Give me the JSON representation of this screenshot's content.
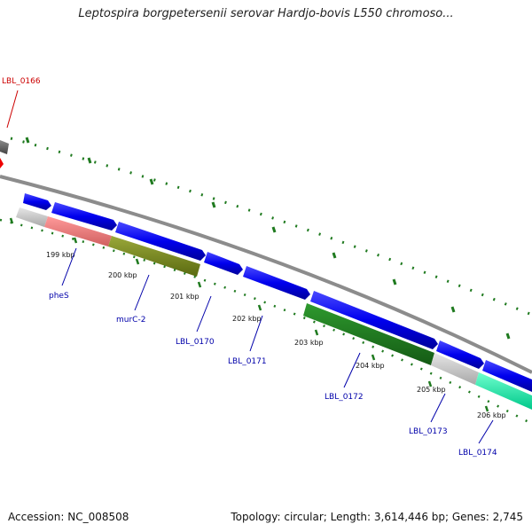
{
  "title": "Leptospira borgpetersenii serovar Hardjo-bovis L550 chromoso...",
  "footer": {
    "accession": "Accession: NC_008508",
    "summary": "Topology: circular; Length: 3,614,446 bp; Genes: 2,745"
  },
  "colors": {
    "backbone": "#8c8c8c",
    "cds_forward": "#0000ee",
    "tick": "#1f7a1f",
    "label_blue": "#0000aa",
    "label_red": "#cc0000"
  },
  "ticks": [
    "199 kbp",
    "200 kbp",
    "201 kbp",
    "202 kbp",
    "203 kbp",
    "204 kbp",
    "205 kbp",
    "206 kbp"
  ],
  "genes": [
    {
      "name": "LBL_0166",
      "highlight": true
    },
    {
      "name": "pheS"
    },
    {
      "name": "murC-2"
    },
    {
      "name": "LBL_0170"
    },
    {
      "name": "LBL_0171"
    },
    {
      "name": "LBL_0172"
    },
    {
      "name": "LBL_0173"
    },
    {
      "name": "LBL_0174"
    }
  ]
}
